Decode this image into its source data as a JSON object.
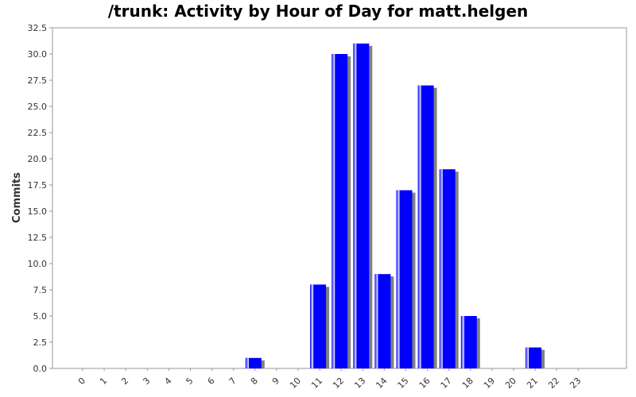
{
  "chart_data": {
    "type": "bar",
    "title": "/trunk: Activity by Hour of Day for matt.helgen",
    "xlabel": "",
    "ylabel": "Commits",
    "categories": [
      "0",
      "1",
      "2",
      "3",
      "4",
      "5",
      "6",
      "7",
      "8",
      "9",
      "10",
      "11",
      "12",
      "13",
      "14",
      "15",
      "16",
      "17",
      "18",
      "19",
      "20",
      "21",
      "22",
      "23"
    ],
    "values": [
      0,
      0,
      0,
      0,
      0,
      0,
      0,
      0,
      1,
      0,
      0,
      8,
      30,
      31,
      9,
      17,
      27,
      19,
      5,
      0,
      0,
      2,
      0,
      0
    ],
    "ylim": [
      0,
      32.5
    ],
    "yticks": [
      "0.0",
      "2.5",
      "5.0",
      "7.5",
      "10.0",
      "12.5",
      "15.0",
      "17.5",
      "20.0",
      "22.5",
      "25.0",
      "27.5",
      "30.0",
      "32.5"
    ],
    "grid": false,
    "legend": "none",
    "colors": {
      "bar": "#0000ff",
      "bar_highlight": "#8c8cff",
      "shadow": "#808080",
      "axis": "#999999"
    }
  }
}
